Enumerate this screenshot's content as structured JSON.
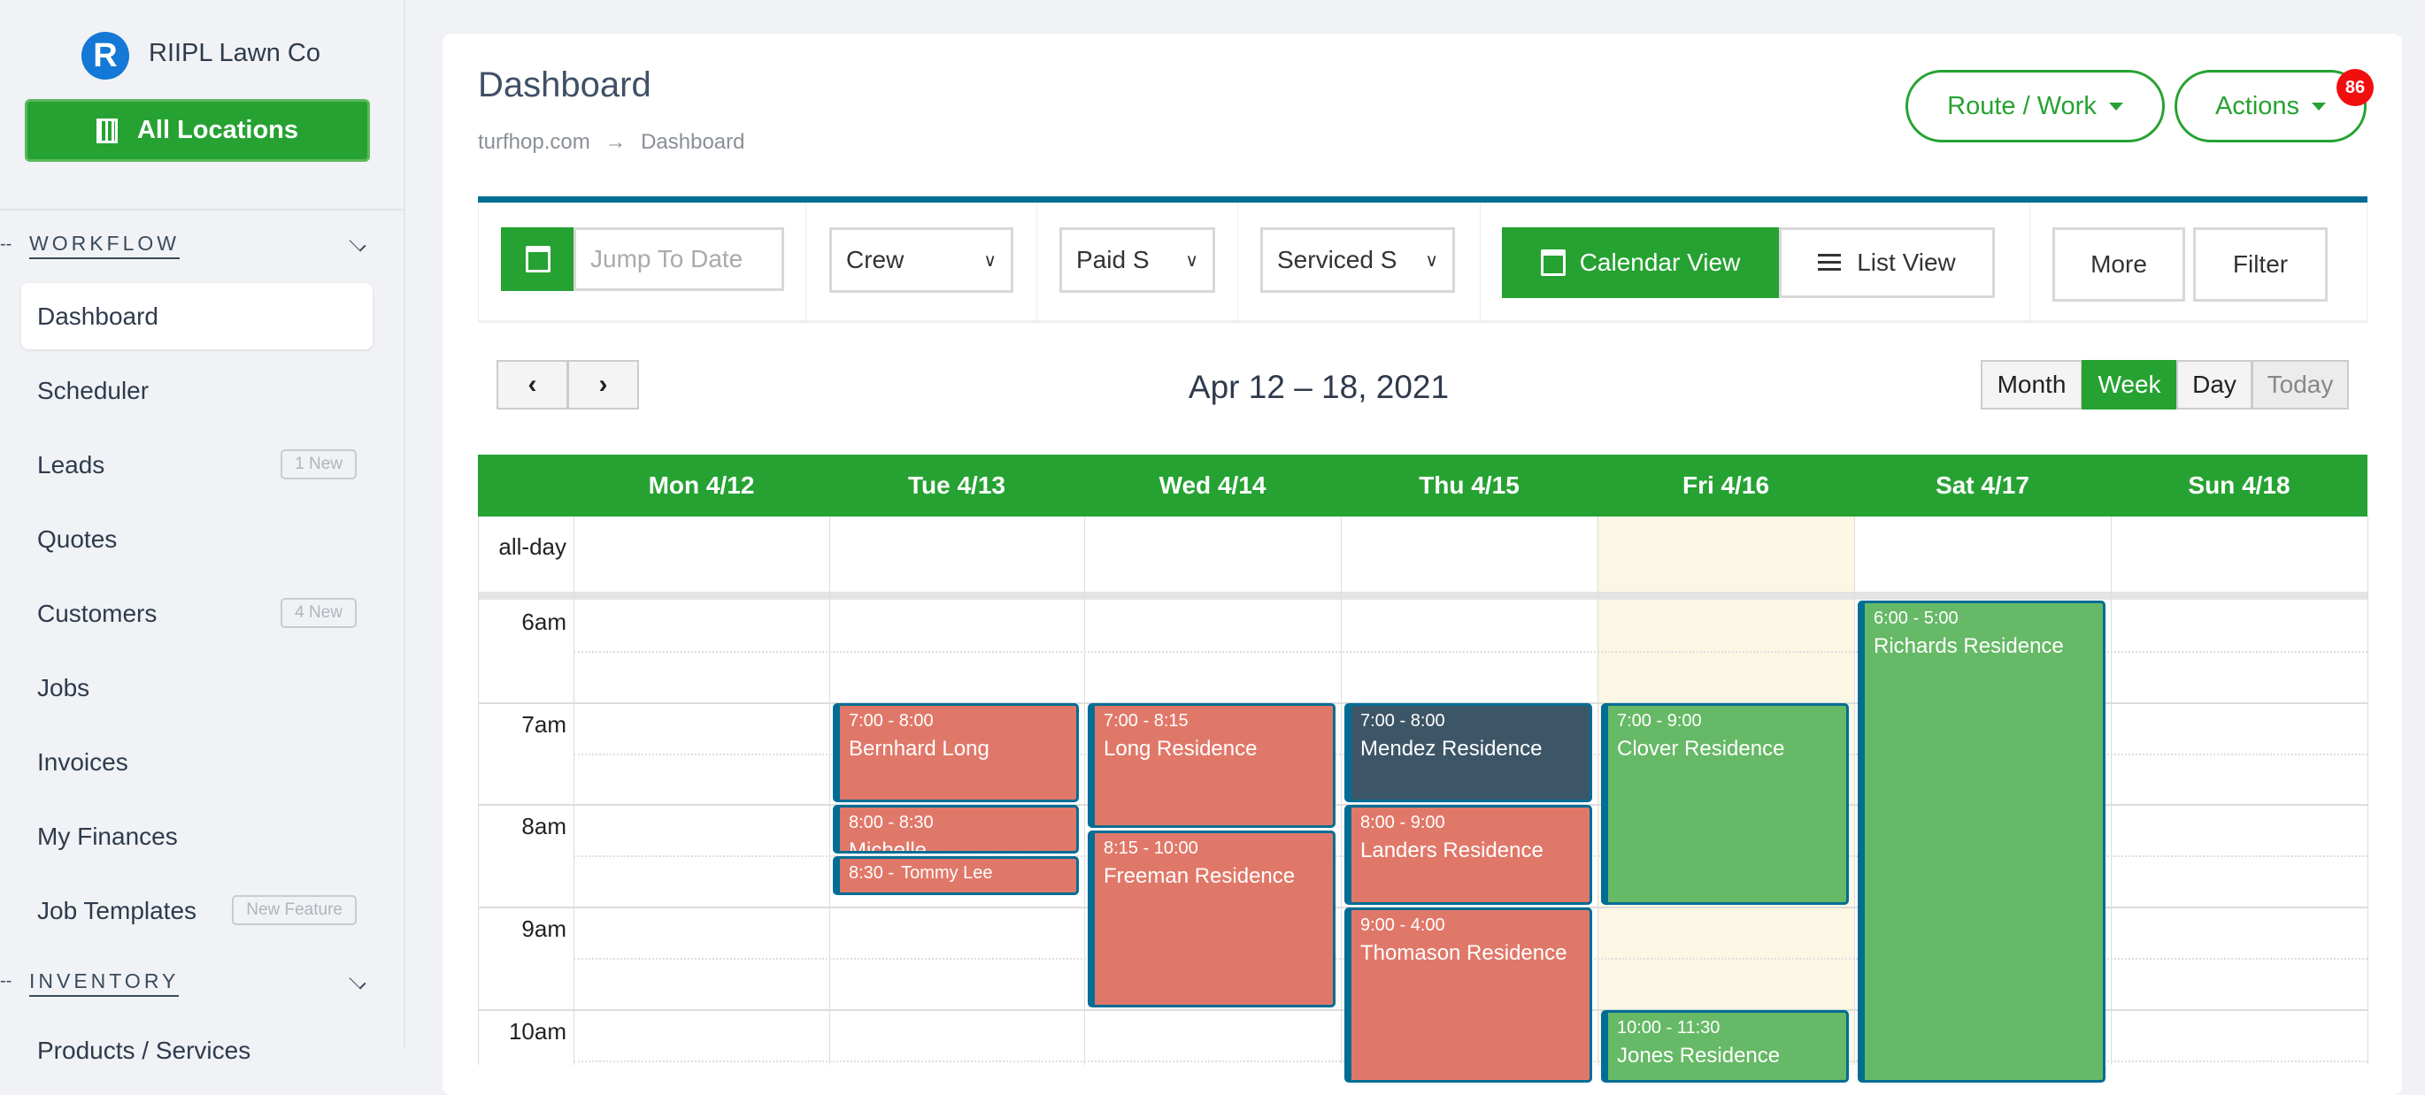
{
  "sidebar": {
    "company_initial": "R",
    "company": "RIIPL Lawn Co",
    "all_locations": "All Locations",
    "sections": [
      {
        "label": "WORKFLOW"
      },
      {
        "label": "INVENTORY"
      }
    ],
    "items": [
      {
        "label": "Dashboard",
        "active": true
      },
      {
        "label": "Scheduler"
      },
      {
        "label": "Leads",
        "badge": "1 New"
      },
      {
        "label": "Quotes"
      },
      {
        "label": "Customers",
        "badge": "4 New"
      },
      {
        "label": "Jobs"
      },
      {
        "label": "Invoices"
      },
      {
        "label": "My Finances"
      },
      {
        "label": "Job Templates",
        "badge": "New Feature"
      }
    ],
    "inventory_items": [
      {
        "label": "Products / Services"
      }
    ]
  },
  "header": {
    "title": "Dashboard",
    "breadcrumb": [
      "turfhop.com",
      "Dashboard"
    ],
    "breadcrumb_sep": "→",
    "route_work": "Route / Work",
    "actions": "Actions",
    "actions_badge": "86"
  },
  "toolbar": {
    "jump_placeholder": "Jump To Date",
    "crew": "Crew",
    "paid": "Paid S",
    "serviced": "Serviced S",
    "calendar_view": "Calendar View",
    "list_view": "List View",
    "more": "More",
    "filter": "Filter"
  },
  "calendar": {
    "range": "Apr 12 – 18, 2021",
    "prev": "‹",
    "next": "›",
    "views": [
      {
        "label": "Month"
      },
      {
        "label": "Week",
        "active": true
      },
      {
        "label": "Day"
      },
      {
        "label": "Today",
        "disabled": true
      }
    ],
    "allday_label": "all-day",
    "days": [
      "Mon 4/12",
      "Tue 4/13",
      "Wed 4/14",
      "Thu 4/15",
      "Fri 4/16",
      "Sat 4/17",
      "Sun 4/18"
    ],
    "today_index": 4,
    "hours": [
      "6am",
      "7am",
      "8am",
      "9am",
      "10am"
    ],
    "colors": {
      "red": "#e07869",
      "green": "#66b966",
      "dark": "#3d5667",
      "border": "#006d94",
      "today": "#fcf7e4",
      "brand": "#26a232"
    },
    "events": [
      {
        "day": 1,
        "start": 7,
        "end": 8,
        "time": "7:00 - 8:00",
        "name": "Bernhard Long",
        "color": "red"
      },
      {
        "day": 1,
        "start": 8,
        "end": 8.5,
        "time": "8:00 - 8:30",
        "name": "Michelle",
        "color": "red"
      },
      {
        "day": 1,
        "start": 8.5,
        "end": 8.9,
        "time": "8:30 -",
        "name": "Tommy Lee",
        "color": "red",
        "inline": true
      },
      {
        "day": 2,
        "start": 7,
        "end": 8.25,
        "time": "7:00 - 8:15",
        "name": "Long Residence",
        "color": "red"
      },
      {
        "day": 2,
        "start": 8.25,
        "end": 10,
        "time": "8:15 - 10:00",
        "name": "Freeman Residence",
        "color": "red"
      },
      {
        "day": 3,
        "start": 7,
        "end": 8,
        "time": "7:00 - 8:00",
        "name": "Mendez Residence",
        "color": "dark"
      },
      {
        "day": 3,
        "start": 8,
        "end": 9,
        "time": "8:00 - 9:00",
        "name": "Landers Residence",
        "color": "red"
      },
      {
        "day": 3,
        "start": 9,
        "end": 16,
        "time": "9:00 - 4:00",
        "name": "Thomason Residence",
        "color": "red"
      },
      {
        "day": 4,
        "start": 7,
        "end": 9,
        "time": "7:00 - 9:00",
        "name": "Clover Residence",
        "color": "green"
      },
      {
        "day": 4,
        "start": 10,
        "end": 11.5,
        "time": "10:00 - 11:30",
        "name": "Jones Residence",
        "color": "green"
      },
      {
        "day": 5,
        "start": 6,
        "end": 17,
        "time": "6:00 - 5:00",
        "name": "Richards Residence",
        "color": "green"
      }
    ]
  }
}
